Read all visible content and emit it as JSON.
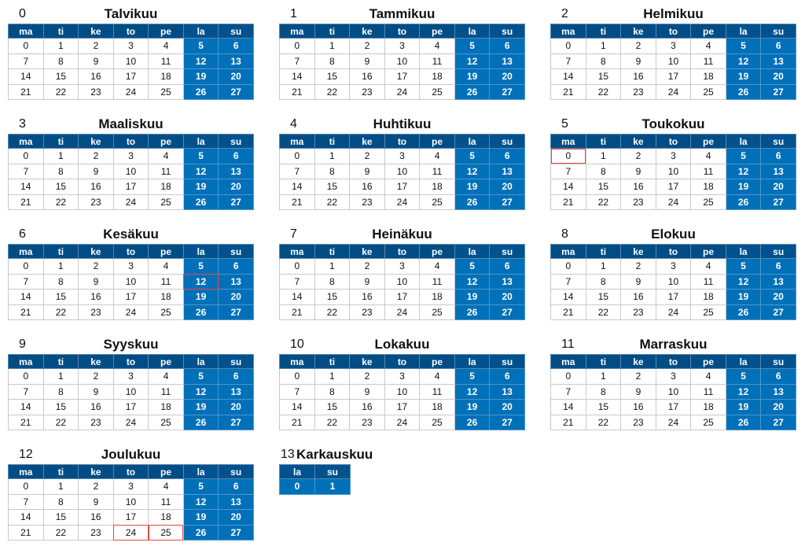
{
  "weekdays": [
    "ma",
    "ti",
    "ke",
    "to",
    "pe",
    "la",
    "su"
  ],
  "weekend_columns": [
    5,
    6
  ],
  "days": [
    [
      0,
      1,
      2,
      3,
      4,
      5,
      6
    ],
    [
      7,
      8,
      9,
      10,
      11,
      12,
      13
    ],
    [
      14,
      15,
      16,
      17,
      18,
      19,
      20
    ],
    [
      21,
      22,
      23,
      24,
      25,
      26,
      27
    ]
  ],
  "colors": {
    "header": "#004d86",
    "weekend": "#0070b8",
    "highlight": "#e8473b"
  },
  "months": [
    {
      "number": "0",
      "name": "Talvikuu",
      "highlights": []
    },
    {
      "number": "1",
      "name": "Tammikuu",
      "highlights": []
    },
    {
      "number": "2",
      "name": "Helmikuu",
      "highlights": []
    },
    {
      "number": "3",
      "name": "Maaliskuu",
      "highlights": []
    },
    {
      "number": "4",
      "name": "Huhtikuu",
      "highlights": []
    },
    {
      "number": "5",
      "name": "Toukokuu",
      "highlights": [
        0
      ]
    },
    {
      "number": "6",
      "name": "Kesäkuu",
      "highlights": [
        12
      ]
    },
    {
      "number": "7",
      "name": "Heinäkuu",
      "highlights": []
    },
    {
      "number": "8",
      "name": "Elokuu",
      "highlights": []
    },
    {
      "number": "9",
      "name": "Syyskuu",
      "highlights": []
    },
    {
      "number": "10",
      "name": "Lokakuu",
      "highlights": []
    },
    {
      "number": "11",
      "name": "Marraskuu",
      "highlights": []
    },
    {
      "number": "12",
      "name": "Joulukuu",
      "highlights": [
        24,
        25
      ]
    }
  ],
  "leap_month": {
    "number": "13",
    "name": "Karkauskuu",
    "weekdays": [
      "la",
      "su"
    ],
    "days": [
      [
        0,
        1
      ]
    ]
  }
}
